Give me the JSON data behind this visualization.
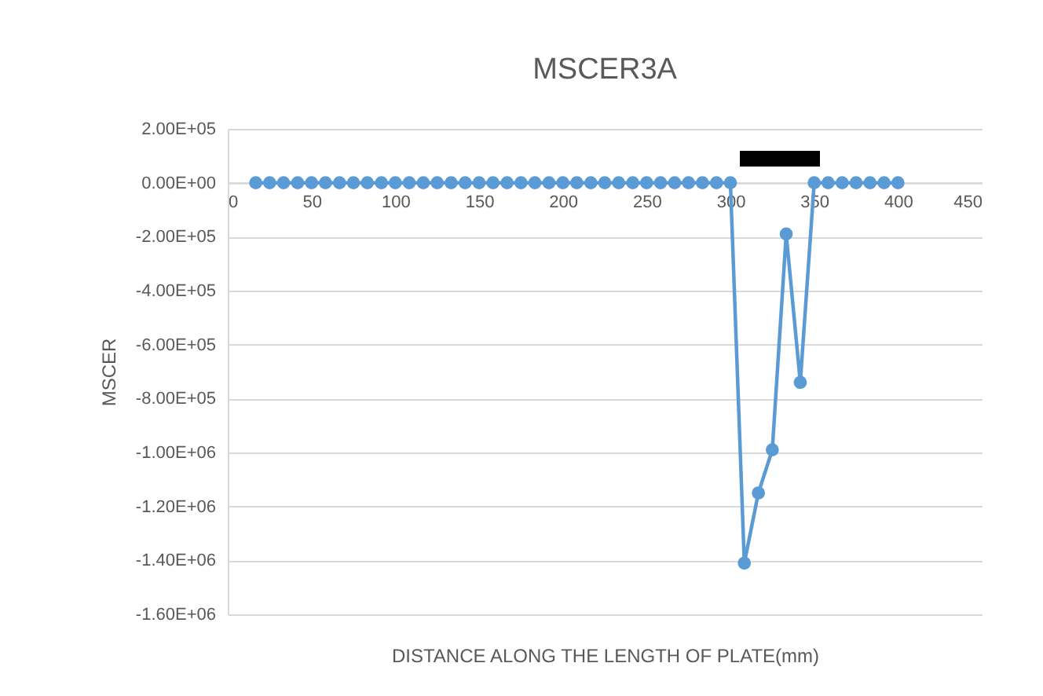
{
  "chart_data": {
    "type": "line",
    "title": "MSCER3A",
    "xlabel": "DISTANCE ALONG THE LENGTH OF PLATE(mm)",
    "ylabel": "MSCER",
    "x": [
      16.7,
      25,
      33.3,
      41.7,
      50,
      58.3,
      66.7,
      75,
      83.3,
      91.7,
      100,
      108.3,
      116.7,
      125,
      133.3,
      141.7,
      150,
      158.3,
      166.7,
      175,
      183.3,
      191.7,
      200,
      208.3,
      216.7,
      225,
      233.3,
      241.7,
      250,
      258.3,
      266.7,
      275,
      283.3,
      291.7,
      300,
      308.3,
      316.7,
      325,
      333.3,
      341.7,
      350,
      358.3,
      366.7,
      375,
      383.3,
      391.7,
      400
    ],
    "series": [
      {
        "color": "#5b9bd5",
        "values": [
          0,
          0,
          0,
          0,
          0,
          0,
          0,
          0,
          0,
          0,
          0,
          0,
          0,
          0,
          0,
          0,
          0,
          0,
          0,
          0,
          0,
          0,
          0,
          0,
          0,
          0,
          0,
          0,
          0,
          0,
          0,
          0,
          0,
          0,
          0,
          -1410000,
          -1150000,
          -990000,
          -190000,
          -740000,
          0,
          0,
          0,
          0,
          0,
          0,
          0
        ]
      }
    ],
    "xlim": [
      0,
      450
    ],
    "xticks": [
      0,
      50,
      100,
      150,
      200,
      250,
      300,
      350,
      400,
      450
    ],
    "ylim": [
      -1600000,
      200000
    ],
    "yticks": [
      {
        "value": 200000,
        "label": "2.00E+05"
      },
      {
        "value": 0,
        "label": "0.00E+00"
      },
      {
        "value": -200000,
        "label": "-2.00E+05"
      },
      {
        "value": -400000,
        "label": "-4.00E+05"
      },
      {
        "value": -600000,
        "label": "-6.00E+05"
      },
      {
        "value": -800000,
        "label": "-8.00E+05"
      },
      {
        "value": -1000000,
        "label": "-1.00E+06"
      },
      {
        "value": -1200000,
        "label": "-1.20E+06"
      },
      {
        "value": -1400000,
        "label": "-1.40E+06"
      },
      {
        "value": -1600000,
        "label": "-1.60E+06"
      }
    ],
    "grid": "y",
    "marker": "circle",
    "line_style": "solid"
  }
}
